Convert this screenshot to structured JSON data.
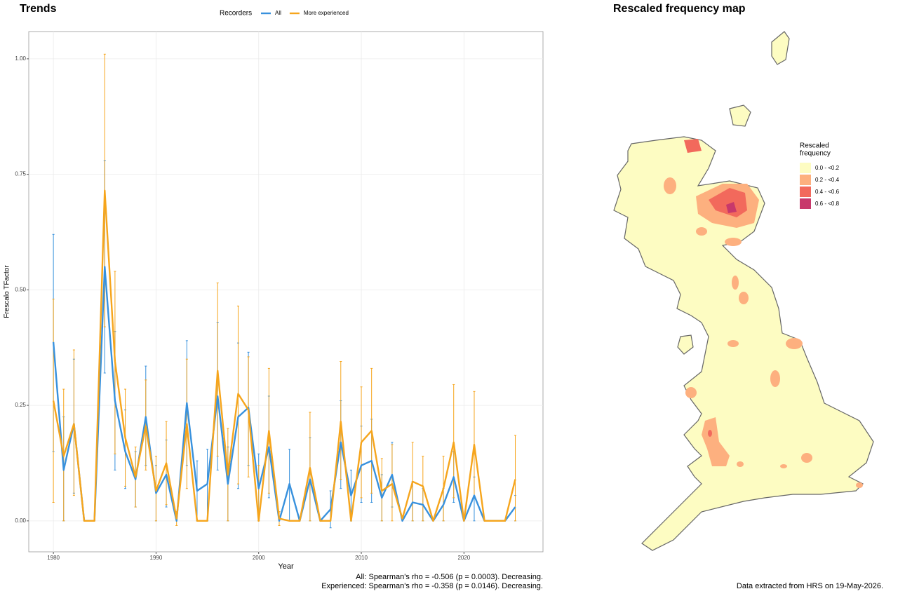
{
  "chart_data": [
    {
      "type": "line",
      "title": "Trends",
      "legend_title": "Recorders",
      "xlabel": "Year",
      "ylabel": "Frescalo TFactor",
      "x": [
        1980,
        1981,
        1982,
        1983,
        1984,
        1985,
        1986,
        1987,
        1988,
        1989,
        1990,
        1991,
        1992,
        1993,
        1994,
        1995,
        1996,
        1997,
        1998,
        1999,
        2000,
        2001,
        2002,
        2003,
        2004,
        2005,
        2006,
        2007,
        2008,
        2009,
        2010,
        2011,
        2012,
        2013,
        2014,
        2015,
        2016,
        2017,
        2018,
        2019,
        2020,
        2021,
        2022,
        2023,
        2024,
        2025
      ],
      "series": [
        {
          "name": "All",
          "color": "#3891dd",
          "values": [
            0.387,
            0.11,
            0.21,
            0,
            0,
            0.55,
            0.26,
            0.15,
            0.09,
            0.225,
            0.06,
            0.1,
            0,
            0.255,
            0.065,
            0.08,
            0.27,
            0.08,
            0.225,
            0.245,
            0.07,
            0.16,
            0,
            0.08,
            0,
            0.09,
            0,
            0.025,
            0.17,
            0.055,
            0.12,
            0.13,
            0.05,
            0.1,
            0,
            0.04,
            0.035,
            0,
            0.035,
            0.095,
            0,
            0.055,
            0,
            0,
            0,
            0.03
          ],
          "lower": [
            0.15,
            0,
            0.06,
            null,
            null,
            0.32,
            0.11,
            0.07,
            0.03,
            0.12,
            0,
            0.03,
            null,
            0.12,
            0,
            0,
            0.11,
            0,
            0.07,
            0.12,
            0,
            0.05,
            null,
            0,
            null,
            0,
            null,
            -0.015,
            0.07,
            0,
            0.04,
            0.04,
            0,
            0.03,
            null,
            0,
            0,
            null,
            0,
            0.04,
            null,
            0,
            null,
            null,
            null,
            0
          ],
          "upper": [
            0.62,
            0.225,
            0.35,
            null,
            null,
            0.78,
            0.41,
            0.24,
            0.15,
            0.335,
            0.12,
            0.175,
            null,
            0.39,
            0.13,
            0.155,
            0.43,
            0.16,
            0.385,
            0.365,
            0.145,
            0.27,
            null,
            0.155,
            null,
            0.18,
            null,
            0.065,
            0.26,
            0.11,
            0.205,
            0.22,
            0.1,
            0.17,
            null,
            0.085,
            0.07,
            null,
            0.07,
            0.15,
            null,
            0.095,
            null,
            null,
            null,
            0.055
          ]
        },
        {
          "name": "More experienced",
          "color": "#f6a51c",
          "values": [
            0.26,
            0.14,
            0.21,
            0,
            0,
            0.715,
            0.345,
            0.18,
            0.095,
            0.205,
            0.065,
            0.125,
            0.005,
            0.21,
            0,
            0,
            0.325,
            0.1,
            0.275,
            0.24,
            0,
            0.195,
            0.005,
            0,
            0,
            0.115,
            0,
            0,
            0.215,
            0,
            0.17,
            0.195,
            0.065,
            0.08,
            0.005,
            0.085,
            0.075,
            0,
            0.07,
            0.17,
            0,
            0.165,
            0,
            0,
            0,
            0.09
          ],
          "lower": [
            0.04,
            0,
            0.055,
            null,
            null,
            0.42,
            0.145,
            0.075,
            0.03,
            0.11,
            0,
            0.035,
            -0.01,
            0.07,
            null,
            null,
            0.14,
            0,
            0.08,
            0.095,
            0,
            0.06,
            -0.01,
            null,
            null,
            0,
            null,
            null,
            0.09,
            null,
            0.05,
            0.06,
            0,
            0,
            null,
            0,
            0,
            null,
            0,
            0.05,
            null,
            0.05,
            null,
            null,
            null,
            0
          ],
          "upper": [
            0.48,
            0.285,
            0.37,
            null,
            null,
            1.01,
            0.54,
            0.285,
            0.16,
            0.305,
            0.14,
            0.215,
            0.02,
            0.35,
            null,
            null,
            0.515,
            0.2,
            0.465,
            0.355,
            0.12,
            0.33,
            0.02,
            null,
            null,
            0.235,
            null,
            null,
            0.345,
            null,
            0.29,
            0.33,
            0.135,
            0.165,
            null,
            0.17,
            0.14,
            null,
            0.14,
            0.295,
            null,
            0.28,
            null,
            null,
            null,
            0.185
          ]
        }
      ],
      "xlim": [
        1977.6,
        2027.7
      ],
      "xticks": [
        1980,
        1990,
        2000,
        2010,
        2020
      ],
      "ylim": [
        -0.067,
        1.059
      ],
      "yticks": [
        {
          "value": 0,
          "label": "0.00"
        },
        {
          "value": 0.25,
          "label": "0.25"
        },
        {
          "value": 0.5,
          "label": "0.50"
        },
        {
          "value": 0.75,
          "label": "0.75"
        },
        {
          "value": 1,
          "label": "1.00"
        }
      ],
      "grid": true,
      "annotations": [
        "All: Spearman's rho = -0.506 (p = 0.0003). Decreasing.",
        "Experienced: Spearman's rho = -0.358 (p = 0.0146). Decreasing."
      ]
    },
    {
      "type": "map",
      "title": "Rescaled frequency map",
      "legend_title": [
        "Rescaled",
        "frequency"
      ],
      "legend": [
        {
          "label": "0.0 - <0.2",
          "color": "#fdfcc2"
        },
        {
          "label": "0.2 - <0.4",
          "color": "#fdb07f"
        },
        {
          "label": "0.4 - <0.6",
          "color": "#f2695c"
        },
        {
          "label": "0.6 - <0.8",
          "color": "#c8386b"
        }
      ],
      "note": "Data extracted from HRS on 19-May-2026."
    }
  ]
}
